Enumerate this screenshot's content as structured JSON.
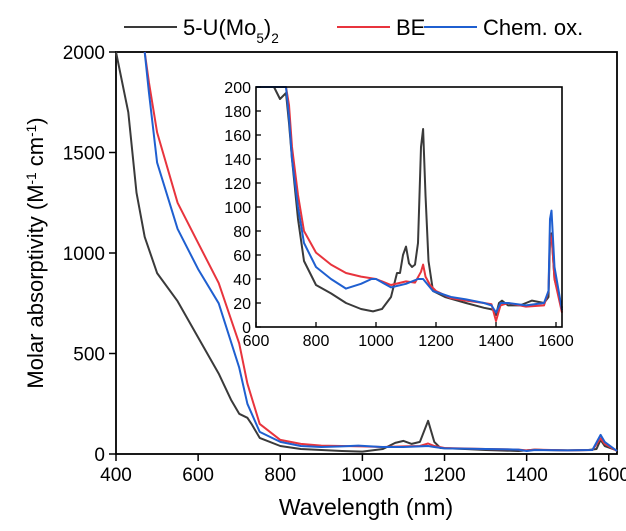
{
  "chart_data": [
    {
      "panel": "main",
      "type": "line",
      "xlabel": "Wavelength (nm)",
      "ylabel_parts": [
        "Molar absorptivity (M",
        "-1",
        " cm",
        "-1",
        ")"
      ],
      "xlim": [
        400,
        1620
      ],
      "ylim": [
        0,
        2000
      ],
      "xticks": [
        400,
        600,
        800,
        1000,
        1200,
        1400,
        1600
      ],
      "yticks": [
        0,
        500,
        1000,
        1500,
        2000
      ],
      "grid": false,
      "legend_position": "top, outside plot area",
      "legend": [
        {
          "label_parts": [
            "5-U(Mo",
            "5",
            ")",
            "2"
          ],
          "color": "#3a3a3a"
        },
        {
          "label_parts": [
            "BE"
          ],
          "color": "#e8343d"
        },
        {
          "label_parts": [
            "Chem. ox."
          ],
          "color": "#1f5fd0"
        }
      ],
      "series": [
        {
          "color": "#3a3a3a",
          "points": [
            [
              400,
              2000
            ],
            [
              430,
              1700
            ],
            [
              450,
              1300
            ],
            [
              470,
              1080
            ],
            [
              500,
              900
            ],
            [
              550,
              760
            ],
            [
              600,
              580
            ],
            [
              650,
              400
            ],
            [
              680,
              270
            ],
            [
              700,
              200
            ],
            [
              720,
              180
            ],
            [
              730,
              150
            ],
            [
              750,
              80
            ],
            [
              800,
              40
            ],
            [
              850,
              25
            ],
            [
              900,
              20
            ],
            [
              950,
              15
            ],
            [
              1000,
              12
            ],
            [
              1050,
              25
            ],
            [
              1080,
              55
            ],
            [
              1100,
              65
            ],
            [
              1120,
              50
            ],
            [
              1140,
              60
            ],
            [
              1160,
              165
            ],
            [
              1175,
              60
            ],
            [
              1190,
              30
            ],
            [
              1250,
              25
            ],
            [
              1300,
              20
            ],
            [
              1380,
              15
            ],
            [
              1400,
              18
            ],
            [
              1420,
              22
            ],
            [
              1440,
              20
            ],
            [
              1500,
              18
            ],
            [
              1550,
              20
            ],
            [
              1570,
              25
            ],
            [
              1580,
              70
            ],
            [
              1590,
              40
            ],
            [
              1620,
              18
            ]
          ]
        },
        {
          "color": "#e8343d",
          "points": [
            [
              470,
              2000
            ],
            [
              480,
              1850
            ],
            [
              500,
              1600
            ],
            [
              550,
              1250
            ],
            [
              600,
              1050
            ],
            [
              650,
              850
            ],
            [
              700,
              550
            ],
            [
              720,
              350
            ],
            [
              750,
              150
            ],
            [
              800,
              70
            ],
            [
              850,
              50
            ],
            [
              900,
              42
            ],
            [
              950,
              40
            ],
            [
              1000,
              38
            ],
            [
              1050,
              35
            ],
            [
              1100,
              38
            ],
            [
              1140,
              40
            ],
            [
              1160,
              52
            ],
            [
              1175,
              40
            ],
            [
              1200,
              30
            ],
            [
              1300,
              25
            ],
            [
              1380,
              22
            ],
            [
              1400,
              18
            ],
            [
              1420,
              22
            ],
            [
              1500,
              18
            ],
            [
              1560,
              20
            ],
            [
              1580,
              78
            ],
            [
              1590,
              50
            ],
            [
              1620,
              15
            ]
          ]
        },
        {
          "color": "#1f5fd0",
          "points": [
            [
              470,
              2000
            ],
            [
              480,
              1800
            ],
            [
              500,
              1450
            ],
            [
              550,
              1120
            ],
            [
              600,
              920
            ],
            [
              650,
              750
            ],
            [
              700,
              430
            ],
            [
              720,
              250
            ],
            [
              750,
              110
            ],
            [
              800,
              60
            ],
            [
              850,
              40
            ],
            [
              900,
              35
            ],
            [
              950,
              38
            ],
            [
              990,
              42
            ],
            [
              1050,
              35
            ],
            [
              1100,
              35
            ],
            [
              1140,
              38
            ],
            [
              1160,
              40
            ],
            [
              1175,
              35
            ],
            [
              1200,
              28
            ],
            [
              1300,
              25
            ],
            [
              1380,
              22
            ],
            [
              1400,
              15
            ],
            [
              1420,
              20
            ],
            [
              1500,
              18
            ],
            [
              1560,
              20
            ],
            [
              1580,
              95
            ],
            [
              1590,
              60
            ],
            [
              1620,
              15
            ]
          ]
        }
      ]
    },
    {
      "panel": "inset",
      "type": "line",
      "xlim": [
        600,
        1620
      ],
      "ylim": [
        0,
        200
      ],
      "xticks": [
        600,
        800,
        1000,
        1200,
        1400,
        1600
      ],
      "yticks": [
        0,
        20,
        40,
        60,
        80,
        100,
        120,
        140,
        160,
        180,
        200
      ],
      "grid": false,
      "series": [
        {
          "color": "#3a3a3a",
          "points": [
            [
              600,
              200
            ],
            [
              660,
              200
            ],
            [
              680,
              190
            ],
            [
              700,
              195
            ],
            [
              710,
              170
            ],
            [
              720,
              140
            ],
            [
              740,
              90
            ],
            [
              760,
              55
            ],
            [
              800,
              35
            ],
            [
              850,
              28
            ],
            [
              900,
              20
            ],
            [
              950,
              15
            ],
            [
              990,
              13
            ],
            [
              1020,
              15
            ],
            [
              1050,
              25
            ],
            [
              1070,
              45
            ],
            [
              1080,
              45
            ],
            [
              1090,
              60
            ],
            [
              1100,
              67
            ],
            [
              1110,
              53
            ],
            [
              1120,
              50
            ],
            [
              1130,
              52
            ],
            [
              1140,
              70
            ],
            [
              1150,
              150
            ],
            [
              1157,
              165
            ],
            [
              1165,
              110
            ],
            [
              1175,
              55
            ],
            [
              1190,
              30
            ],
            [
              1230,
              25
            ],
            [
              1300,
              20
            ],
            [
              1360,
              16
            ],
            [
              1380,
              15
            ],
            [
              1395,
              14
            ],
            [
              1400,
              10
            ],
            [
              1410,
              20
            ],
            [
              1420,
              22
            ],
            [
              1440,
              18
            ],
            [
              1480,
              18
            ],
            [
              1500,
              20
            ],
            [
              1520,
              22
            ],
            [
              1560,
              20
            ],
            [
              1575,
              25
            ],
            [
              1580,
              72
            ],
            [
              1585,
              78
            ],
            [
              1595,
              40
            ],
            [
              1620,
              16
            ]
          ]
        },
        {
          "color": "#e8343d",
          "points": [
            [
              600,
              200
            ],
            [
              700,
              200
            ],
            [
              710,
              185
            ],
            [
              720,
              150
            ],
            [
              740,
              110
            ],
            [
              760,
              80
            ],
            [
              800,
              62
            ],
            [
              850,
              52
            ],
            [
              900,
              45
            ],
            [
              950,
              42
            ],
            [
              1000,
              40
            ],
            [
              1050,
              35
            ],
            [
              1100,
              38
            ],
            [
              1130,
              37
            ],
            [
              1150,
              46
            ],
            [
              1157,
              52
            ],
            [
              1165,
              42
            ],
            [
              1180,
              35
            ],
            [
              1200,
              30
            ],
            [
              1250,
              24
            ],
            [
              1300,
              22
            ],
            [
              1360,
              20
            ],
            [
              1385,
              19
            ],
            [
              1400,
              5
            ],
            [
              1415,
              18
            ],
            [
              1440,
              20
            ],
            [
              1500,
              17
            ],
            [
              1560,
              18
            ],
            [
              1575,
              30
            ],
            [
              1580,
              78
            ],
            [
              1587,
              70
            ],
            [
              1595,
              40
            ],
            [
              1620,
              12
            ]
          ]
        },
        {
          "color": "#1f5fd0",
          "points": [
            [
              600,
              200
            ],
            [
              700,
              200
            ],
            [
              710,
              175
            ],
            [
              720,
              140
            ],
            [
              740,
              100
            ],
            [
              760,
              70
            ],
            [
              800,
              50
            ],
            [
              850,
              40
            ],
            [
              900,
              32
            ],
            [
              950,
              36
            ],
            [
              985,
              40
            ],
            [
              1000,
              40
            ],
            [
              1050,
              33
            ],
            [
              1100,
              36
            ],
            [
              1140,
              40
            ],
            [
              1157,
              40
            ],
            [
              1170,
              36
            ],
            [
              1190,
              30
            ],
            [
              1250,
              25
            ],
            [
              1300,
              23
            ],
            [
              1360,
              20
            ],
            [
              1385,
              18
            ],
            [
              1400,
              12
            ],
            [
              1415,
              20
            ],
            [
              1440,
              20
            ],
            [
              1500,
              18
            ],
            [
              1560,
              20
            ],
            [
              1575,
              30
            ],
            [
              1580,
              90
            ],
            [
              1585,
              97
            ],
            [
              1595,
              50
            ],
            [
              1620,
              14
            ]
          ]
        }
      ]
    }
  ]
}
